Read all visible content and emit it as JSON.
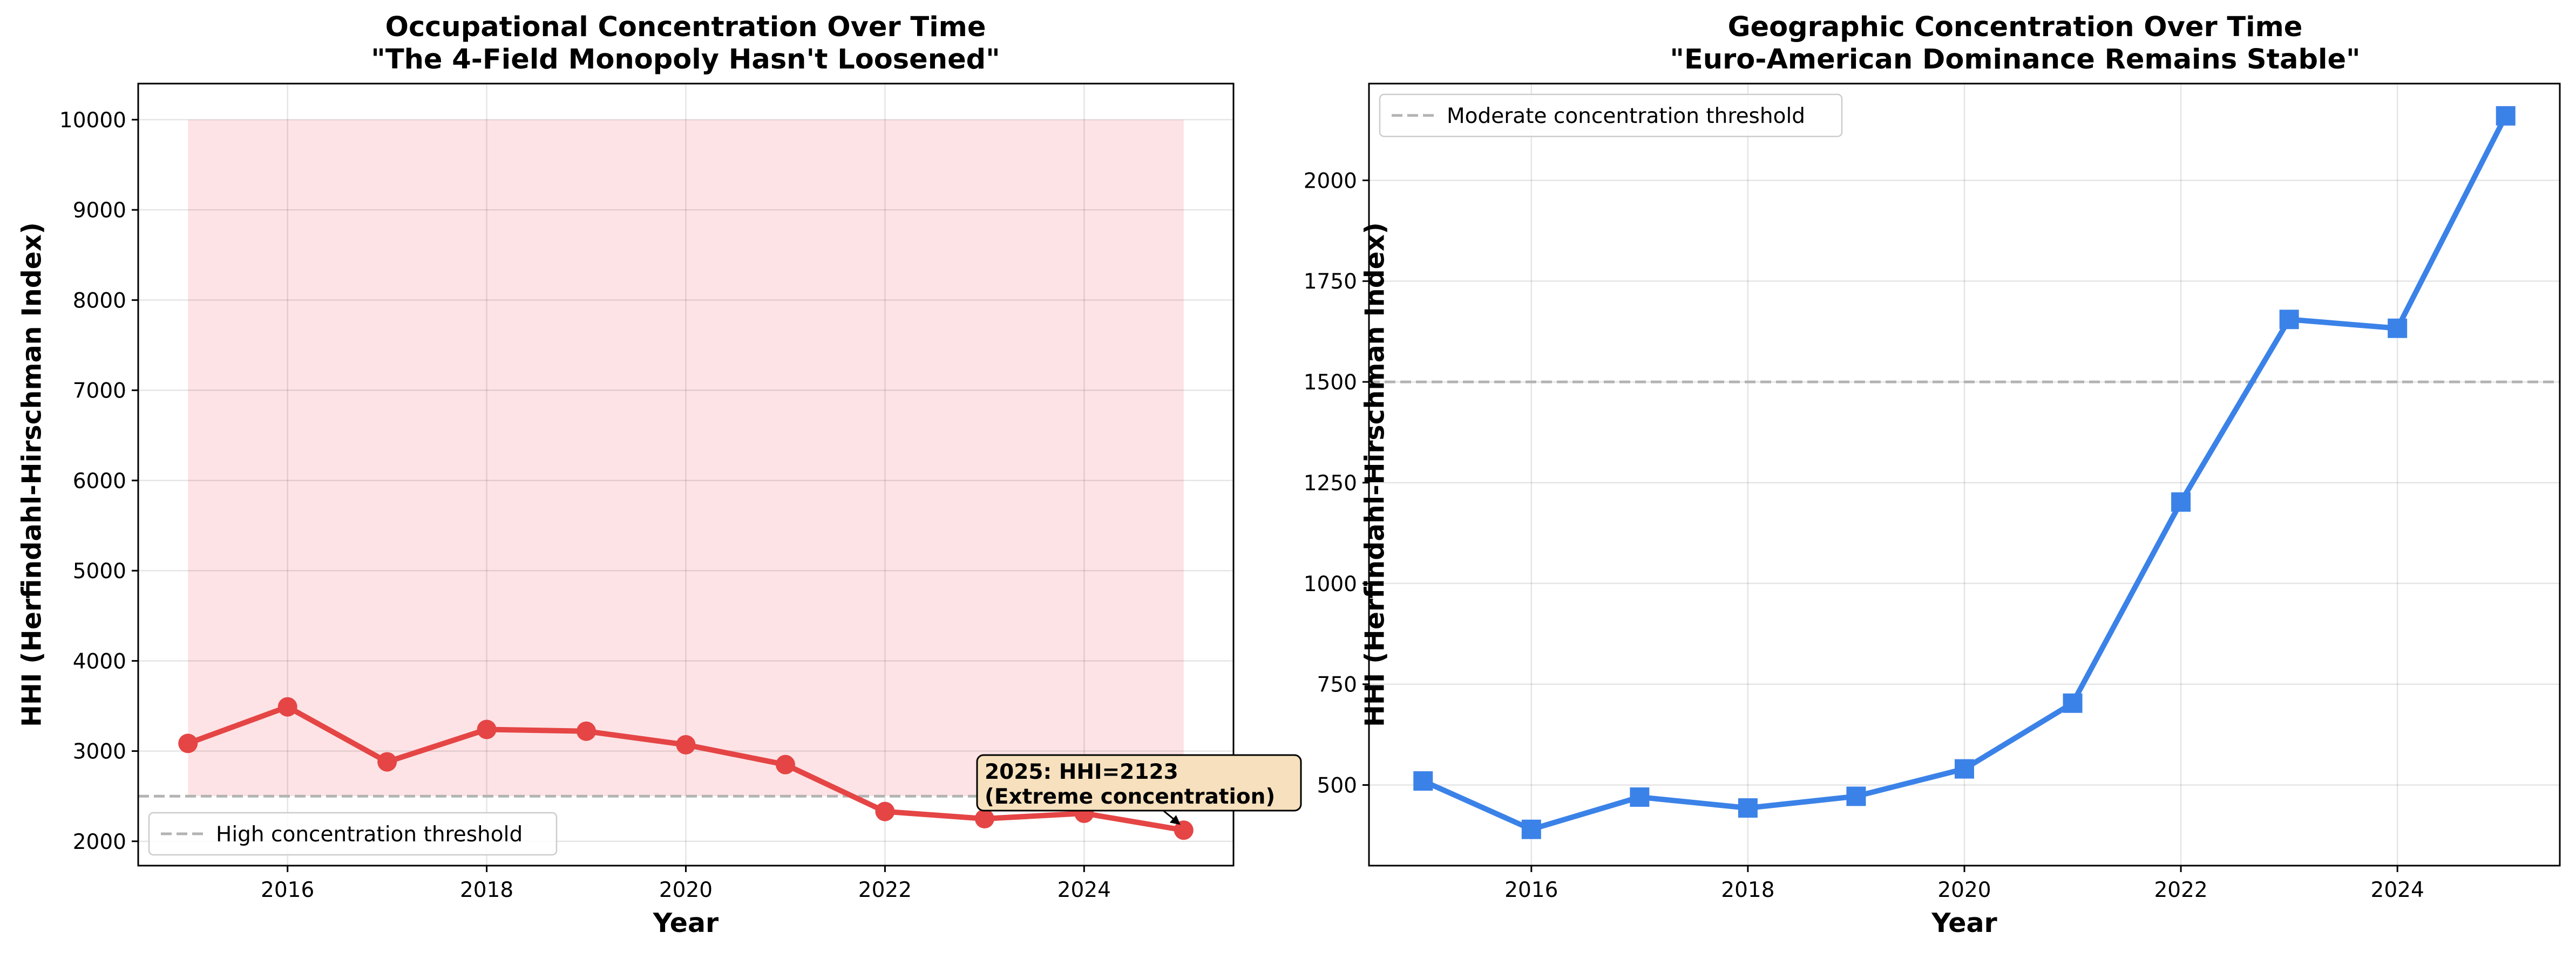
{
  "chart_data": [
    {
      "type": "line",
      "title": "Occupational Concentration Over Time",
      "subtitle": "\"The 4-Field Monopoly Hasn't Loosened\"",
      "xlabel": "Year",
      "ylabel": "HHI (Herfindahl-Hirschman Index)",
      "xlim": [
        2014.5,
        2025.5
      ],
      "ylim": [
        1730,
        10400
      ],
      "xticks": [
        2016,
        2018,
        2020,
        2022,
        2024
      ],
      "yticks": [
        2000,
        3000,
        4000,
        5000,
        6000,
        7000,
        8000,
        9000,
        10000
      ],
      "grid": true,
      "legend_position": "lower-left",
      "line_color": "#e54545",
      "marker": "circle",
      "shaded_region": {
        "x": [
          2015,
          2025
        ],
        "y": [
          2500,
          10000
        ],
        "color": "#fde3e5"
      },
      "threshold": {
        "value": 2500,
        "label": "High concentration threshold",
        "color": "#b3b3b3"
      },
      "annotation": {
        "line1": "2025: HHI=2123",
        "line2": "(Extreme concentration)",
        "x": 2025,
        "y": 2123,
        "box_color": "#f6e0bd"
      },
      "series": [
        {
          "x": [
            2015,
            2016,
            2017,
            2018,
            2019,
            2020,
            2021,
            2022,
            2023,
            2024,
            2025
          ],
          "values": [
            3085,
            3490,
            2880,
            3240,
            3220,
            3070,
            2850,
            2330,
            2250,
            2310,
            2123
          ]
        }
      ]
    },
    {
      "type": "line",
      "title": "Geographic Concentration Over Time",
      "subtitle": "\"Euro-American Dominance Remains Stable\"",
      "xlabel": "Year",
      "ylabel": "HHI (Herfindahl-Hirschman Index)",
      "xlim": [
        2014.5,
        2025.5
      ],
      "ylim": [
        300,
        2240
      ],
      "xticks": [
        2016,
        2018,
        2020,
        2022,
        2024
      ],
      "yticks": [
        500,
        750,
        1000,
        1250,
        1500,
        1750,
        2000
      ],
      "grid": true,
      "legend_position": "upper-left",
      "line_color": "#3b82e8",
      "marker": "square",
      "threshold": {
        "value": 1500,
        "label": "Moderate concentration threshold",
        "color": "#b3b3b3"
      },
      "series": [
        {
          "x": [
            2015,
            2016,
            2017,
            2018,
            2019,
            2020,
            2021,
            2022,
            2023,
            2024,
            2025
          ],
          "values": [
            510,
            390,
            470,
            443,
            472,
            540,
            703,
            1202,
            1655,
            1633,
            2160
          ]
        }
      ]
    }
  ]
}
